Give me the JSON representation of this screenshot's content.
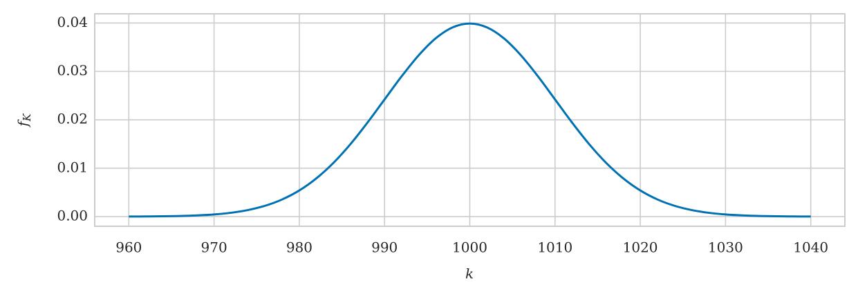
{
  "chart_data": {
    "type": "line",
    "xlabel": "k",
    "ylabel": "f",
    "ylabel_subscript": "K",
    "x": [
      960,
      962,
      964,
      966,
      968,
      970,
      972,
      974,
      976,
      978,
      980,
      982,
      984,
      986,
      988,
      990,
      992,
      994,
      996,
      998,
      1000,
      1002,
      1004,
      1006,
      1008,
      1010,
      1012,
      1014,
      1016,
      1018,
      1020,
      1022,
      1024,
      1026,
      1028,
      1030,
      1032,
      1034,
      1036,
      1038,
      1040
    ],
    "series": [
      {
        "color": "#0072b2",
        "values": [
          1e-05,
          3e-05,
          6e-05,
          0.00012,
          0.00024,
          0.00044,
          0.00079,
          0.00136,
          0.00224,
          0.00355,
          0.0054,
          0.0079,
          0.01109,
          0.01497,
          0.01942,
          0.0242,
          0.02897,
          0.03332,
          0.03683,
          0.0391,
          0.03989,
          0.0391,
          0.03683,
          0.03332,
          0.02897,
          0.0242,
          0.01942,
          0.01497,
          0.01109,
          0.0079,
          0.0054,
          0.00355,
          0.00224,
          0.00136,
          0.00079,
          0.00044,
          0.00024,
          0.00012,
          6e-05,
          3e-05,
          1e-05
        ]
      }
    ],
    "xlim": [
      956,
      1044
    ],
    "xticks": [
      960,
      970,
      980,
      990,
      1000,
      1010,
      1020,
      1030,
      1040
    ],
    "ylim": [
      -0.002,
      0.0419
    ],
    "yticks": [
      {
        "value": 0,
        "label": "0.00"
      },
      {
        "value": 0.01,
        "label": "0.01"
      },
      {
        "value": 0.02,
        "label": "0.02"
      },
      {
        "value": 0.03,
        "label": "0.03"
      },
      {
        "value": 0.04,
        "label": "0.04"
      }
    ],
    "grid": true
  }
}
